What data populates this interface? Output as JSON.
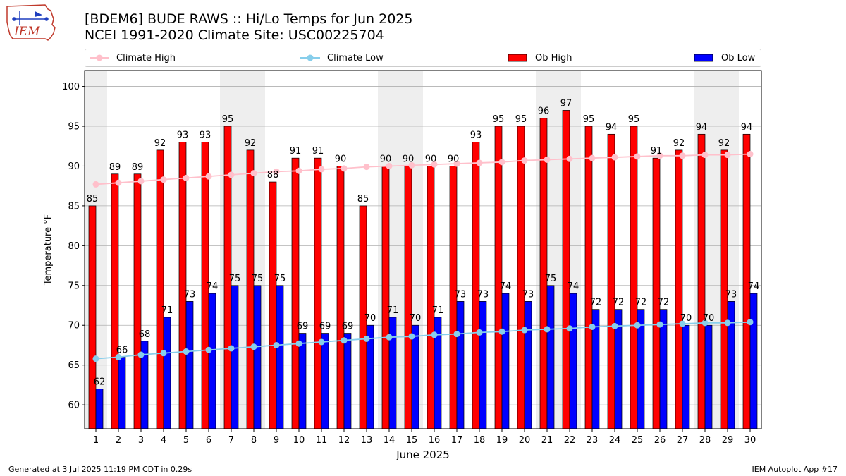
{
  "header": {
    "logo_text": "IEM",
    "title_line1": "[BDEM6] BUDE RAWS :: Hi/Lo Temps for Jun 2025",
    "title_line2": "NCEI 1991-2020 Climate Site: USC00225704"
  },
  "footer": {
    "generated": "Generated at 3 Jul 2025 11:19 PM CDT in 0.29s",
    "app": "IEM Autoplot App #17"
  },
  "colors": {
    "ob_high": "#ff0000",
    "ob_low": "#0000ff",
    "climate_high": "#ffc0cb",
    "climate_low": "#87ceeb",
    "weekend_band": "#eeeeee",
    "grid": "#b0b0b0"
  },
  "chart_data": {
    "type": "bar",
    "title": "[BDEM6] BUDE RAWS :: Hi/Lo Temps for Jun 2025",
    "subtitle": "NCEI 1991-2020 Climate Site: USC00225704",
    "xlabel": "June 2025",
    "ylabel": "Temperature °F",
    "ylim": [
      57,
      102
    ],
    "yticks": [
      60,
      65,
      70,
      75,
      80,
      85,
      90,
      95,
      100
    ],
    "grid": true,
    "legend_position": "top",
    "categories": [
      "1",
      "2",
      "3",
      "4",
      "5",
      "6",
      "7",
      "8",
      "9",
      "10",
      "11",
      "12",
      "13",
      "14",
      "15",
      "16",
      "17",
      "18",
      "19",
      "20",
      "21",
      "22",
      "23",
      "24",
      "25",
      "26",
      "27",
      "28",
      "29",
      "30"
    ],
    "shaded_days": [
      1,
      7,
      8,
      14,
      15,
      21,
      22,
      28,
      29
    ],
    "series": [
      {
        "name": "Ob High",
        "kind": "bar",
        "color": "#ff0000",
        "values": [
          85,
          89,
          89,
          92,
          93,
          93,
          95,
          92,
          88,
          91,
          91,
          90,
          85,
          90,
          90,
          90,
          90,
          93,
          95,
          95,
          96,
          97,
          95,
          94,
          95,
          91,
          92,
          94,
          92,
          94
        ]
      },
      {
        "name": "Ob Low",
        "kind": "bar",
        "color": "#0000ff",
        "values": [
          62,
          66,
          68,
          71,
          73,
          74,
          75,
          75,
          75,
          69,
          69,
          69,
          70,
          71,
          70,
          71,
          73,
          73,
          74,
          73,
          75,
          74,
          72,
          72,
          72,
          72,
          70,
          70,
          73,
          74
        ]
      },
      {
        "name": "Climate High",
        "kind": "line",
        "color": "#ffc0cb",
        "values": [
          87.7,
          87.9,
          88.1,
          88.3,
          88.5,
          88.7,
          88.9,
          89.1,
          89.3,
          89.4,
          89.6,
          89.7,
          89.9,
          90.0,
          90.1,
          90.2,
          90.3,
          90.4,
          90.5,
          90.7,
          90.8,
          90.9,
          91.0,
          91.1,
          91.2,
          91.3,
          91.3,
          91.4,
          91.4,
          91.5
        ]
      },
      {
        "name": "Climate Low",
        "kind": "line",
        "color": "#87ceeb",
        "values": [
          65.8,
          66.0,
          66.3,
          66.5,
          66.7,
          66.9,
          67.1,
          67.3,
          67.5,
          67.7,
          67.9,
          68.1,
          68.3,
          68.5,
          68.6,
          68.8,
          68.9,
          69.1,
          69.2,
          69.4,
          69.5,
          69.6,
          69.8,
          69.9,
          70.0,
          70.1,
          70.2,
          70.3,
          70.3,
          70.4
        ]
      }
    ]
  }
}
